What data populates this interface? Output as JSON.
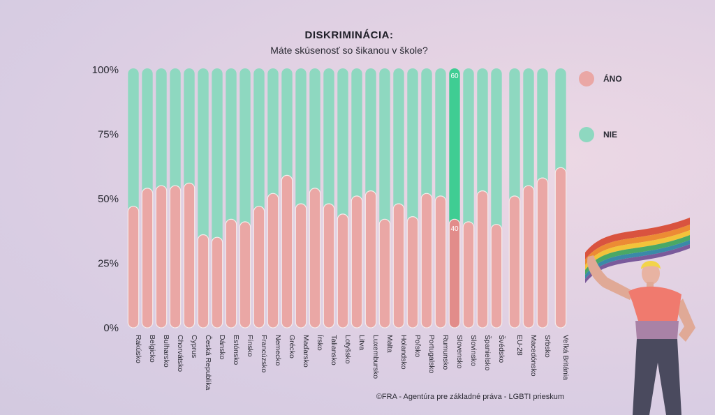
{
  "chart_data": {
    "type": "bar",
    "stacked": true,
    "percent": true,
    "title": "DISKRIMINÁCIA:",
    "subtitle": "Máte skúsenosť so šikanou v škole?",
    "yticks": [
      "0%",
      "25%",
      "50%",
      "75%",
      "100%"
    ],
    "ylim": [
      0,
      100
    ],
    "categories": [
      "Rakúsko",
      "Belgicko",
      "Bulharsko",
      "Chorvátsko",
      "Cyprus",
      "Česká Republika",
      "Dánsko",
      "Estónsko",
      "Fínsko",
      "Francúzsko",
      "Nemecko",
      "Grécko",
      "Maďarsko",
      "Írsko",
      "Taliansko",
      "Lotyšsko",
      "Litva",
      "Luxembursko",
      "Malta",
      "Holandsko",
      "Poľsko",
      "Portugalsko",
      "Rumunsko",
      "Slovensko",
      "Slovinsko",
      "Španielsko",
      "Švédsko",
      "EU-28",
      "Macedónsko",
      "Srbsko",
      "Veľká Británia"
    ],
    "gap_after": [
      "Švédsko",
      "Srbsko"
    ],
    "series": [
      {
        "name": "ÁNO",
        "color": "#eaa7a5",
        "values": [
          45,
          52,
          53,
          53,
          54,
          34,
          33,
          40,
          39,
          45,
          50,
          57,
          46,
          52,
          46,
          42,
          49,
          51,
          40,
          46,
          41,
          50,
          49,
          40,
          39,
          51,
          38,
          49,
          53,
          56,
          60
        ]
      },
      {
        "name": "NIE",
        "color": "#8ed8c0",
        "values": [
          55,
          48,
          47,
          47,
          46,
          66,
          67,
          60,
          61,
          55,
          50,
          43,
          54,
          48,
          54,
          58,
          51,
          49,
          60,
          54,
          59,
          50,
          51,
          60,
          61,
          49,
          62,
          51,
          47,
          44,
          40
        ]
      }
    ],
    "highlight": {
      "category": "Slovensko",
      "label_top": "60",
      "label_bottom": "40",
      "colors": [
        "#e28c8a",
        "#3fcd93"
      ]
    },
    "legend_position": "right",
    "grid": false
  },
  "legend": [
    {
      "label": "ÁNO",
      "color": "#eaa7a5"
    },
    {
      "label": "NIE",
      "color": "#8ed8c0"
    }
  ],
  "source": "©FRA - Agentúra pre základné práva - LGBTI prieskum",
  "illustration": {
    "name": "person-with-rainbow-flag",
    "flag_colors": [
      "#d9533f",
      "#ec8b34",
      "#f2c33a",
      "#4aa865",
      "#3a8aa8",
      "#7a5a9b"
    ]
  }
}
